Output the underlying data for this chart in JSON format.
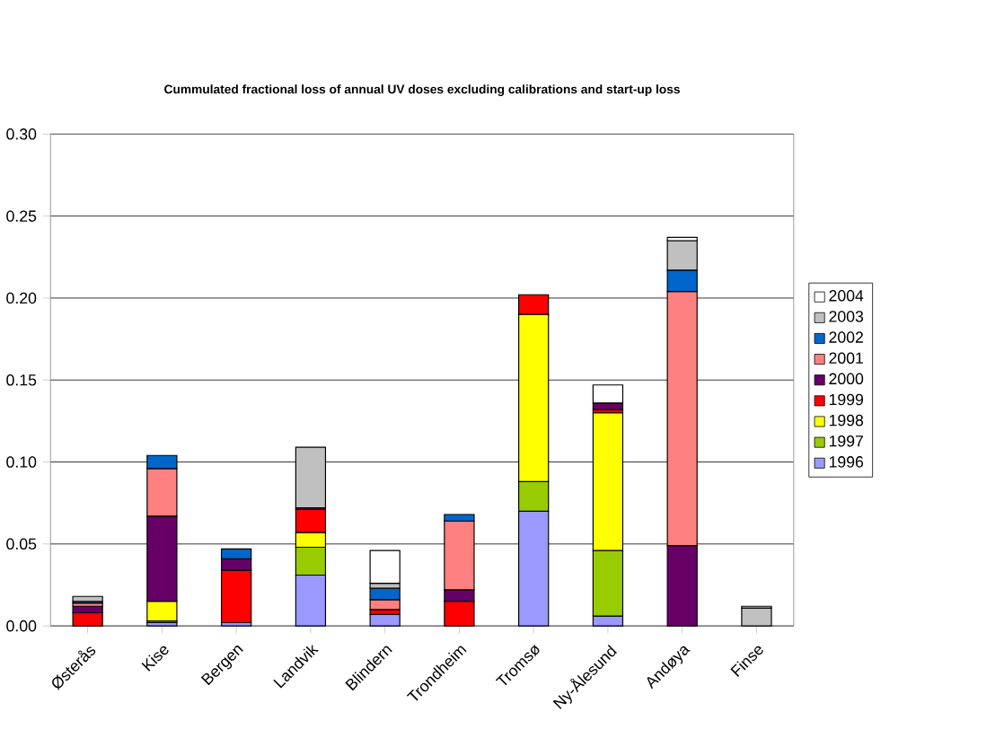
{
  "chart_data": {
    "type": "bar",
    "stacked": true,
    "title": "Cummulated fractional loss of annual UV doses excluding calibrations and start-up loss",
    "categories": [
      "Østerås",
      "Kise",
      "Bergen",
      "Landvik",
      "Blindern",
      "Trondheim",
      "Tromsø",
      "Ny-Ålesund",
      "Andøya",
      "Finse"
    ],
    "series": [
      {
        "name": "1996",
        "color": "#9999ff",
        "values": [
          null,
          0.002,
          0.002,
          0.031,
          0.007,
          null,
          0.07,
          0.006,
          null,
          null
        ]
      },
      {
        "name": "1997",
        "color": "#99cc00",
        "values": [
          null,
          0.001,
          null,
          0.017,
          null,
          null,
          0.018,
          0.04,
          null,
          null
        ]
      },
      {
        "name": "1998",
        "color": "#ffff00",
        "values": [
          null,
          0.012,
          null,
          0.009,
          null,
          null,
          0.102,
          0.084,
          null,
          null
        ]
      },
      {
        "name": "1999",
        "color": "#ff0000",
        "values": [
          0.008,
          null,
          0.032,
          0.014,
          0.003,
          0.015,
          0.012,
          0.002,
          null,
          null
        ]
      },
      {
        "name": "2000",
        "color": "#660066",
        "values": [
          0.004,
          0.052,
          0.007,
          0.001,
          null,
          0.007,
          null,
          0.004,
          0.049,
          null
        ]
      },
      {
        "name": "2001",
        "color": "#ff8080",
        "values": [
          0.002,
          0.029,
          null,
          null,
          0.006,
          0.042,
          null,
          null,
          0.155,
          null
        ]
      },
      {
        "name": "2002",
        "color": "#0066cc",
        "values": [
          0.001,
          0.008,
          0.006,
          null,
          0.007,
          0.004,
          null,
          null,
          0.013,
          null
        ]
      },
      {
        "name": "2003",
        "color": "#c0c0c0",
        "values": [
          0.003,
          null,
          null,
          0.037,
          0.003,
          null,
          null,
          null,
          0.018,
          0.011
        ]
      },
      {
        "name": "2004",
        "color": "#ffffff",
        "values": [
          null,
          null,
          null,
          null,
          0.02,
          null,
          null,
          0.011,
          0.002,
          0.001
        ]
      }
    ],
    "ylim": [
      0,
      0.3
    ],
    "yticks": [
      {
        "value": 0,
        "label": "0.00"
      },
      {
        "value": 0.05,
        "label": "0.05"
      },
      {
        "value": 0.1,
        "label": "0.10"
      },
      {
        "value": 0.15,
        "label": "0.15"
      },
      {
        "value": 0.2,
        "label": "0.20"
      },
      {
        "value": 0.25,
        "label": "0.25"
      },
      {
        "value": 0.3,
        "label": "0.30"
      }
    ],
    "grid": "y",
    "legend": "right"
  }
}
